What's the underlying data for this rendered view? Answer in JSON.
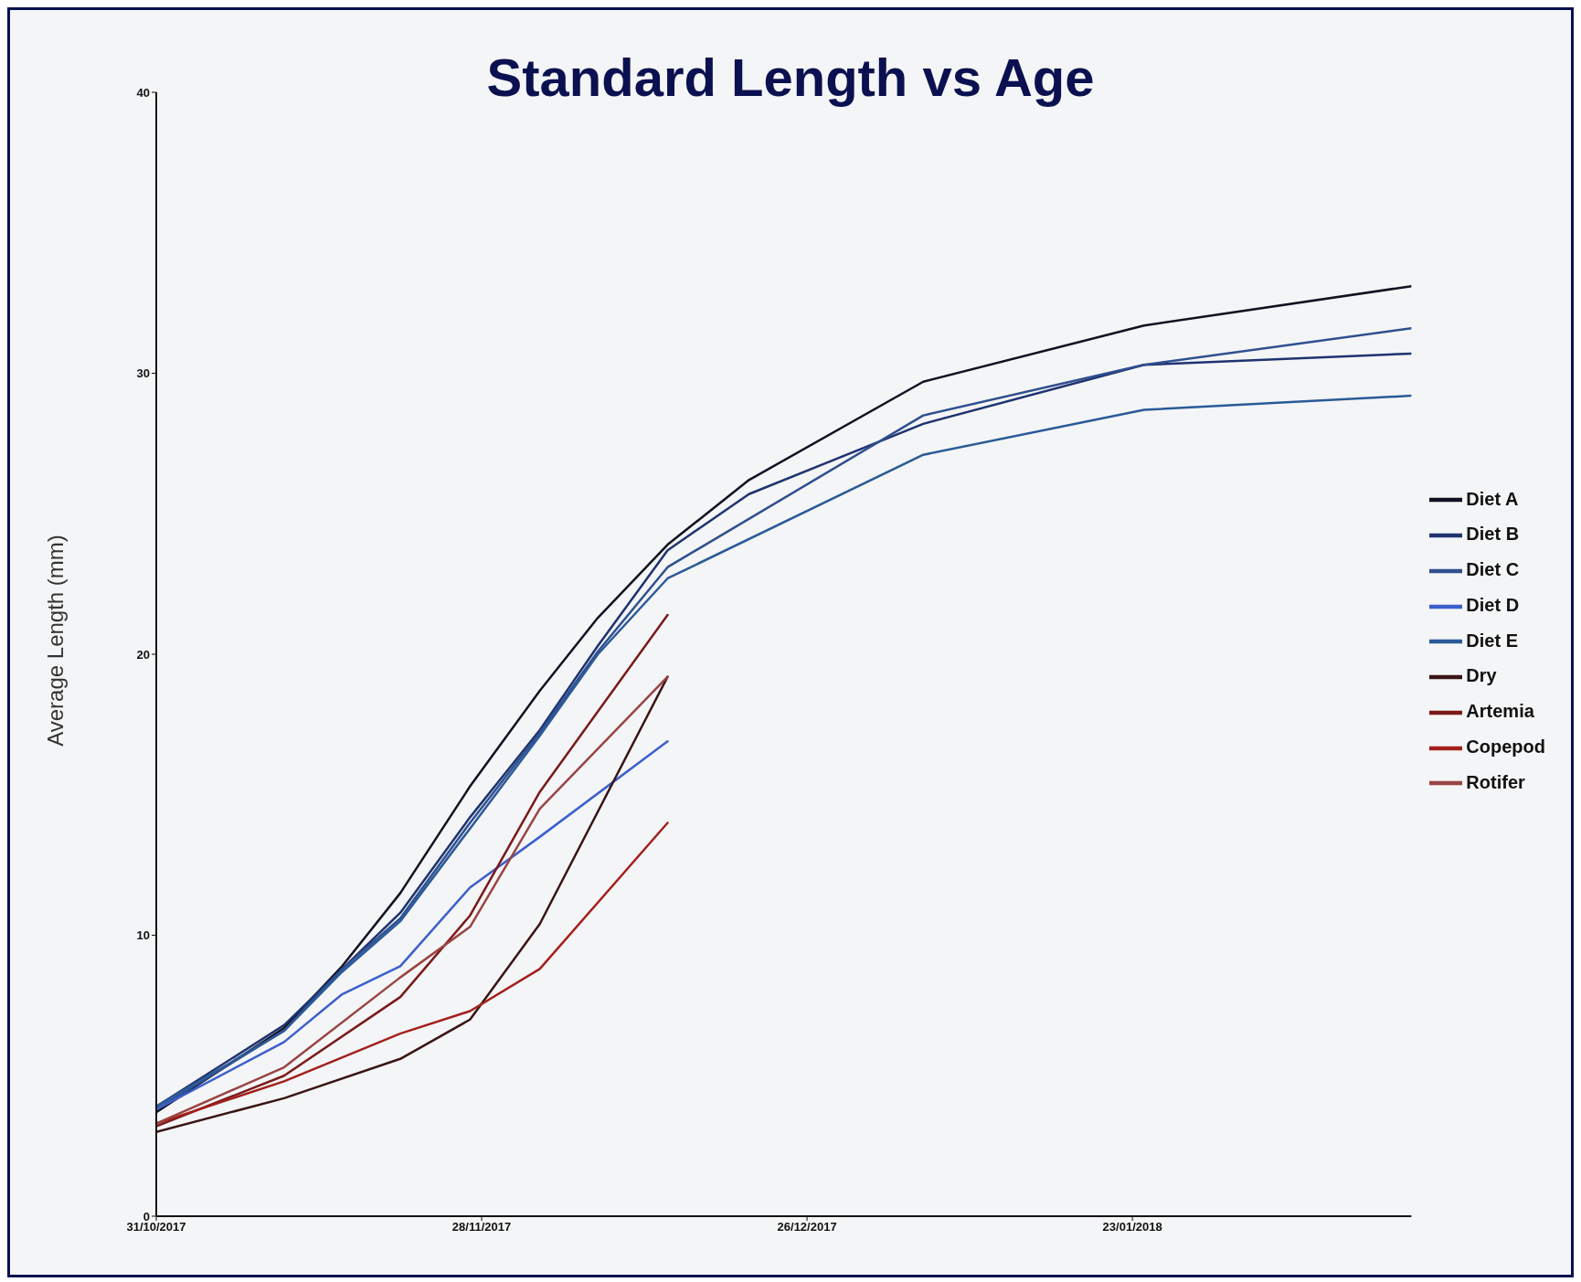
{
  "chart_data": {
    "type": "line",
    "title": "Standard Length vs Age",
    "ylabel": "Average Length (mm)",
    "xlim": [
      "2017-10-31",
      "2018-02-16"
    ],
    "xticks": [
      {
        "value": "2017-10-31",
        "label": "31/10/2017"
      },
      {
        "value": "2017-11-28",
        "label": "28/11/2017"
      },
      {
        "value": "2017-12-26",
        "label": "26/12/2017"
      },
      {
        "value": "2018-01-23",
        "label": "23/01/2018"
      }
    ],
    "ylim": [
      0,
      40
    ],
    "yticks": [
      0,
      10,
      20,
      30,
      40
    ],
    "grid": false,
    "legend": "right",
    "marker": "none",
    "line_style": "solid",
    "series": [
      {
        "name": "Diet A",
        "color": "#111122",
        "x": [
          "2017-10-31",
          "2017-11-11",
          "2017-11-16",
          "2017-11-21",
          "2017-11-27",
          "2017-12-03",
          "2017-12-08",
          "2017-12-14",
          "2017-12-21",
          "2018-01-05",
          "2018-01-24",
          "2018-02-16"
        ],
        "values": [
          3.7,
          6.7,
          8.9,
          11.5,
          15.3,
          18.7,
          21.3,
          23.9,
          26.2,
          29.7,
          31.7,
          33.1
        ]
      },
      {
        "name": "Diet B",
        "color": "#1e3370",
        "x": [
          "2017-10-31",
          "2017-11-11",
          "2017-11-16",
          "2017-11-21",
          "2017-11-27",
          "2017-12-03",
          "2017-12-08",
          "2017-12-14",
          "2017-12-21",
          "2018-01-05",
          "2018-01-24",
          "2018-02-16"
        ],
        "values": [
          3.9,
          6.8,
          8.8,
          10.8,
          14.2,
          17.3,
          20.3,
          23.7,
          25.7,
          28.2,
          30.3,
          30.7
        ]
      },
      {
        "name": "Diet C",
        "color": "#2f4f8f",
        "x": [
          "2017-10-31",
          "2017-11-11",
          "2017-11-16",
          "2017-11-21",
          "2017-11-27",
          "2017-12-03",
          "2017-12-08",
          "2017-12-14",
          "2018-01-05",
          "2018-01-24",
          "2018-02-16"
        ],
        "values": [
          3.8,
          6.6,
          8.8,
          10.6,
          14.0,
          17.2,
          20.1,
          23.1,
          28.5,
          30.3,
          31.6
        ]
      },
      {
        "name": "Diet D",
        "color": "#3d5fcc",
        "x": [
          "2017-10-31",
          "2017-11-11",
          "2017-11-16",
          "2017-11-21",
          "2017-11-27",
          "2017-12-03",
          "2017-12-14"
        ],
        "values": [
          3.8,
          6.2,
          7.9,
          8.9,
          11.7,
          13.5,
          16.9
        ]
      },
      {
        "name": "Diet E",
        "color": "#2a5a98",
        "x": [
          "2017-10-31",
          "2017-11-11",
          "2017-11-16",
          "2017-11-21",
          "2017-11-27",
          "2017-12-03",
          "2017-12-08",
          "2017-12-14",
          "2018-01-05",
          "2018-01-24",
          "2018-02-16"
        ],
        "values": [
          3.9,
          6.6,
          8.7,
          10.5,
          13.8,
          17.1,
          20.0,
          22.7,
          27.1,
          28.7,
          29.2
        ]
      },
      {
        "name": "Dry",
        "color": "#3a1414",
        "x": [
          "2017-10-31",
          "2017-11-11",
          "2017-11-21",
          "2017-11-27",
          "2017-12-03",
          "2017-12-14"
        ],
        "values": [
          3.0,
          4.2,
          5.6,
          7.0,
          10.4,
          19.2
        ]
      },
      {
        "name": "Artemia",
        "color": "#7a1a1a",
        "x": [
          "2017-10-31",
          "2017-11-11",
          "2017-11-21",
          "2017-11-27",
          "2017-12-03",
          "2017-12-14"
        ],
        "values": [
          3.2,
          5.0,
          7.8,
          10.7,
          15.1,
          21.4
        ]
      },
      {
        "name": "Copepod",
        "color": "#a3201c",
        "x": [
          "2017-10-31",
          "2017-11-11",
          "2017-11-21",
          "2017-11-27",
          "2017-12-03",
          "2017-12-14"
        ],
        "values": [
          3.3,
          4.8,
          6.5,
          7.3,
          8.8,
          14.0
        ]
      },
      {
        "name": "Rotifer",
        "color": "#9a4444",
        "x": [
          "2017-10-31",
          "2017-11-11",
          "2017-11-21",
          "2017-11-27",
          "2017-12-03",
          "2017-12-14"
        ],
        "values": [
          3.3,
          5.3,
          8.5,
          10.3,
          14.5,
          19.2
        ]
      }
    ]
  }
}
